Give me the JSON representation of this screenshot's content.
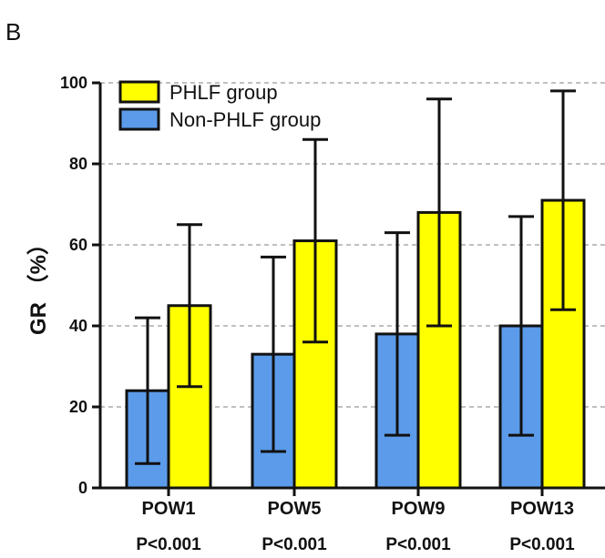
{
  "panel_label": "B",
  "colors": {
    "non_phlf": "#5b9bea",
    "phlf": "#ffff00",
    "stroke": "#111111",
    "grid": "#9a9a9a"
  },
  "chart_data": {
    "type": "bar",
    "title": "",
    "xlabel": "",
    "ylabel": "GR （%）",
    "ylim": [
      0,
      100
    ],
    "yticks": [
      0,
      20,
      40,
      60,
      80,
      100
    ],
    "grid": "horizontal-dashed",
    "legend_position": "top-left",
    "categories": [
      "POW1",
      "POW5",
      "POW9",
      "POW13"
    ],
    "pvalues": [
      "P<0.001",
      "P<0.001",
      "P<0.001",
      "P<0.001"
    ],
    "series": [
      {
        "name": "Non-PHLF group",
        "color": "#5b9bea",
        "values": [
          24,
          33,
          38,
          40
        ],
        "error_low": [
          6,
          9,
          13,
          13
        ],
        "error_high": [
          42,
          57,
          63,
          67
        ]
      },
      {
        "name": "PHLF group",
        "color": "#ffff00",
        "values": [
          45,
          61,
          68,
          71
        ],
        "error_low": [
          25,
          36,
          40,
          44
        ],
        "error_high": [
          65,
          86,
          96,
          98
        ]
      }
    ],
    "legend_order": [
      "PHLF group",
      "Non-PHLF group"
    ]
  }
}
